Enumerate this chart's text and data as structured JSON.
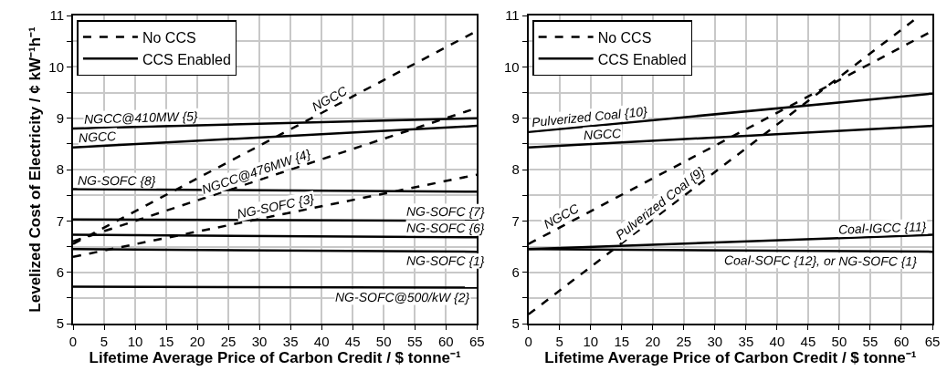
{
  "chart_data": [
    {
      "type": "line",
      "xlabel": "Lifetime Average Price of Carbon Credit / $ tonne⁻¹",
      "ylabel": "Levelized Cost of Electricity / ¢ kW⁻¹h⁻¹",
      "xlim": [
        0,
        65
      ],
      "ylim": [
        5,
        11
      ],
      "xticks": [
        0,
        5,
        10,
        15,
        20,
        25,
        30,
        35,
        40,
        45,
        50,
        55,
        60,
        65
      ],
      "yticks": [
        5,
        {
          "value": 5.5,
          "label": null
        },
        6,
        {
          "value": 6.5,
          "label": null
        },
        7,
        {
          "value": 7.5,
          "label": null
        },
        8,
        {
          "value": 8.5,
          "label": null
        },
        9,
        {
          "value": 9.5,
          "label": null
        },
        10,
        {
          "value": 10.5,
          "label": null
        },
        11
      ],
      "grid": true,
      "legend": "top left",
      "series": [
        {
          "name": "No CCS",
          "color": "#000000",
          "line_style": "dashed",
          "x": [
            0,
            65
          ],
          "values": [
            6.55,
            10.7
          ]
        },
        {
          "color": "#000000",
          "line_style": "dashed",
          "x": [
            0,
            65
          ],
          "values": [
            6.6,
            9.2
          ]
        },
        {
          "color": "#000000",
          "line_style": "dashed",
          "x": [
            0,
            65
          ],
          "values": [
            6.3,
            7.9
          ]
        },
        {
          "name": "CCS Enabled",
          "color": "#000000",
          "line_style": "solid",
          "x": [
            0,
            65
          ],
          "values": [
            8.8,
            9.0
          ]
        },
        {
          "color": "#000000",
          "line_style": "solid",
          "x": [
            0,
            65
          ],
          "values": [
            8.43,
            8.85
          ]
        },
        {
          "color": "#000000",
          "line_style": "solid",
          "x": [
            0,
            65
          ],
          "values": [
            7.62,
            7.57
          ]
        },
        {
          "color": "#000000",
          "line_style": "solid",
          "x": [
            0,
            65
          ],
          "values": [
            7.03,
            7.0
          ]
        },
        {
          "color": "#000000",
          "line_style": "solid",
          "x": [
            0,
            65
          ],
          "values": [
            6.73,
            6.68
          ]
        },
        {
          "color": "#000000",
          "line_style": "solid",
          "x": [
            0,
            65
          ],
          "values": [
            6.45,
            6.4
          ]
        },
        {
          "color": "#000000",
          "line_style": "solid",
          "x": [
            0,
            65
          ],
          "values": [
            5.72,
            5.7
          ]
        }
      ],
      "annotations": [
        {
          "text": "NGCC",
          "x": 42,
          "y": 9.23
        },
        {
          "text": "NGCC@476MW {4}",
          "x": 30,
          "y": 7.8
        },
        {
          "text": "NG-SOFC {3}",
          "x": 33,
          "y": 7.11
        },
        {
          "text": "NGCC@410MW {5}",
          "x": 11,
          "y": 8.83
        },
        {
          "text": "NGCC",
          "x": 4,
          "y": 8.46
        },
        {
          "text": "NG-SOFC {8}",
          "x": 7,
          "y": 7.61
        },
        {
          "text": "NG-SOFC {7}",
          "x": 60,
          "y": 7.0
        },
        {
          "text": "NG-SOFC {6}",
          "x": 60,
          "y": 6.69
        },
        {
          "text": "NG-SOFC {1}",
          "x": 60,
          "y": 6.4
        },
        {
          "text": "NG-SOFC@500/kW {2}",
          "x": 53,
          "y": 5.7
        }
      ]
    },
    {
      "type": "line",
      "xlabel": "Lifetime Average Price of Carbon Credit / $ tonne⁻¹",
      "xlim": [
        0,
        65
      ],
      "ylim": [
        5,
        11
      ],
      "xticks": [
        0,
        5,
        10,
        15,
        20,
        25,
        30,
        35,
        40,
        45,
        50,
        55,
        60,
        65
      ],
      "yticks": [
        5,
        {
          "value": 5.5,
          "label": null
        },
        6,
        {
          "value": 6.5,
          "label": null
        },
        7,
        {
          "value": 7.5,
          "label": null
        },
        8,
        {
          "value": 8.5,
          "label": null
        },
        9,
        {
          "value": 9.5,
          "label": null
        },
        10,
        {
          "value": 10.5,
          "label": null
        },
        11
      ],
      "grid": true,
      "legend": "top left",
      "series": [
        {
          "name": "No CCS",
          "color": "#000000",
          "line_style": "dashed",
          "x": [
            0,
            65
          ],
          "values": [
            6.55,
            10.7
          ]
        },
        {
          "color": "#000000",
          "line_style": "dashed",
          "x": [
            0,
            63
          ],
          "values": [
            5.18,
            11.0
          ]
        },
        {
          "name": "CCS Enabled",
          "color": "#000000",
          "line_style": "solid",
          "x": [
            0,
            65
          ],
          "values": [
            8.73,
            9.48
          ]
        },
        {
          "color": "#000000",
          "line_style": "solid",
          "x": [
            0,
            65
          ],
          "values": [
            8.43,
            8.85
          ]
        },
        {
          "color": "#000000",
          "line_style": "solid",
          "x": [
            0,
            65
          ],
          "values": [
            6.45,
            6.73
          ]
        },
        {
          "color": "#000000",
          "line_style": "solid",
          "x": [
            0,
            65
          ],
          "values": [
            6.45,
            6.4
          ]
        }
      ],
      "annotations": [
        {
          "text": "NGCC",
          "x": 6,
          "y": 6.93
        },
        {
          "text": "Pulverized Coal {9}",
          "x": 22,
          "y": 7.21
        },
        {
          "text": "Pulverized Coal {10}",
          "x": 10,
          "y": 8.85
        },
        {
          "text": "NGCC",
          "x": 12,
          "y": 8.51
        },
        {
          "text": "Coal-IGCC {11}",
          "x": 57,
          "y": 6.69
        },
        {
          "text": "Coal-SOFC {12}, or NG-SOFC {1}",
          "x": 47,
          "y": 6.41
        }
      ]
    }
  ]
}
